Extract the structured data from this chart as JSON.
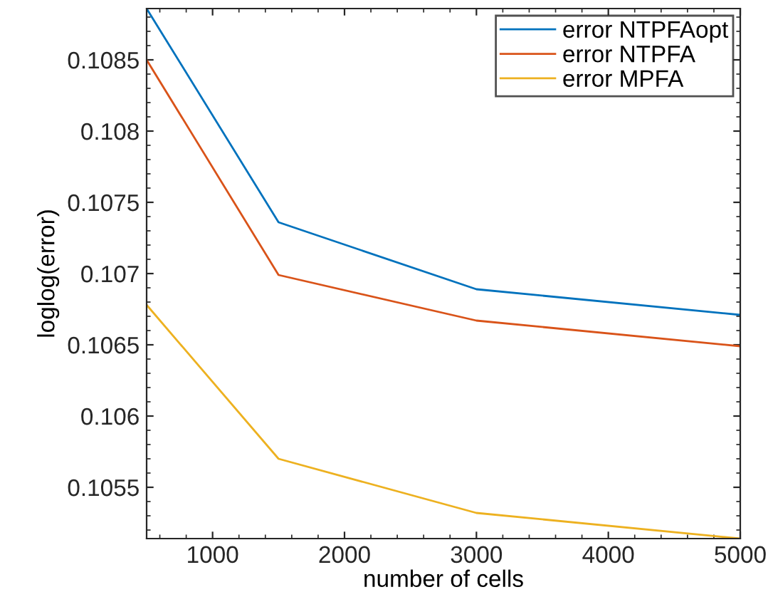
{
  "chart_data": {
    "type": "line",
    "xlabel": "number of cells",
    "ylabel": "loglog(error)",
    "x": [
      500,
      1500,
      3000,
      5000
    ],
    "series": [
      {
        "name": "error NTPFAopt",
        "color": "#0072bd",
        "values": [
          0.10886,
          0.10736,
          0.10689,
          0.10671
        ]
      },
      {
        "name": "error NTPFA",
        "color": "#d95319",
        "values": [
          0.1085,
          0.10699,
          0.10667,
          0.10649
        ]
      },
      {
        "name": "error MPFA",
        "color": "#edb120",
        "values": [
          0.10678,
          0.1057,
          0.10532,
          0.10514
        ]
      }
    ],
    "xlim": [
      500,
      5000
    ],
    "xticks": [
      1000,
      2000,
      3000,
      4000,
      5000
    ],
    "ylim": [
      0.10514,
      0.10886
    ],
    "yticks": [
      0.1055,
      0.106,
      0.1065,
      0.107,
      0.1075,
      0.108,
      0.1085
    ],
    "grid": false,
    "legend": "top right",
    "marker": "none",
    "line_style": "solid"
  }
}
